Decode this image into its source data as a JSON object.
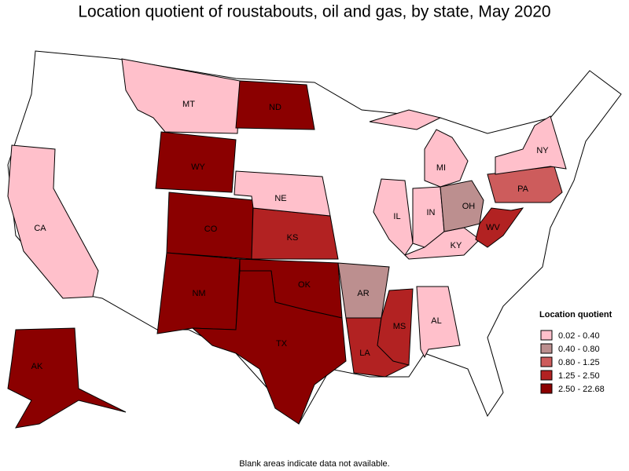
{
  "title": "Location quotient of roustabouts, oil and gas, by state, May 2020",
  "legend": {
    "title": "Location quotient",
    "entries": [
      {
        "label": "0.02 - 0.40",
        "color": "#ffc0cb"
      },
      {
        "label": "0.40 - 0.80",
        "color": "#bc8f8f"
      },
      {
        "label": "0.80 - 1.25",
        "color": "#cd5c5c"
      },
      {
        "label": "1.25 - 2.50",
        "color": "#b22222"
      },
      {
        "label": "2.50 - 22.68",
        "color": "#8b0000"
      }
    ]
  },
  "states": [
    {
      "label": "MT",
      "bin": 0
    },
    {
      "label": "ND",
      "bin": 4
    },
    {
      "label": "WY",
      "bin": 4
    },
    {
      "label": "CO",
      "bin": 4
    },
    {
      "label": "NM",
      "bin": 4
    },
    {
      "label": "KS",
      "bin": 3
    },
    {
      "label": "OK",
      "bin": 4
    },
    {
      "label": "TX",
      "bin": 4
    },
    {
      "label": "NE",
      "bin": 0
    },
    {
      "label": "AR",
      "bin": 1
    },
    {
      "label": "LA",
      "bin": 3
    },
    {
      "label": "MS",
      "bin": 3
    },
    {
      "label": "AL",
      "bin": 0
    },
    {
      "label": "IL",
      "bin": 0
    },
    {
      "label": "IN",
      "bin": 0
    },
    {
      "label": "KY",
      "bin": 0
    },
    {
      "label": "OH",
      "bin": 1
    },
    {
      "label": "WV",
      "bin": 3
    },
    {
      "label": "PA",
      "bin": 2
    },
    {
      "label": "NY",
      "bin": 0
    },
    {
      "label": "MI",
      "bin": 0
    },
    {
      "label": "CA",
      "bin": 0
    },
    {
      "label": "AK",
      "bin": 4
    }
  ],
  "footnote": "Blank areas indicate data not available."
}
